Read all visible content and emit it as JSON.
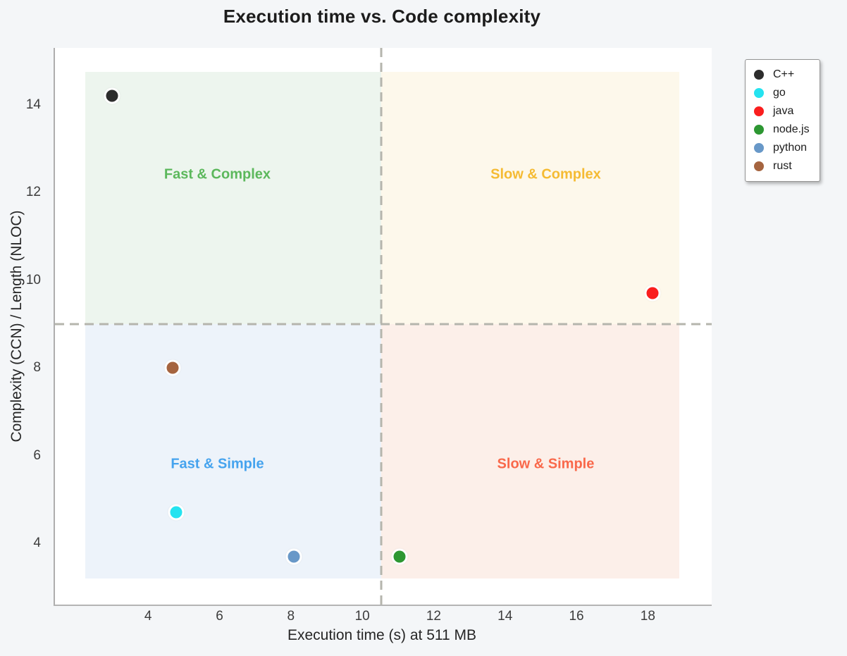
{
  "page": {
    "background": "#f4f6f8",
    "plot_background": "#ffffff",
    "spine_color": "#b0b0b0"
  },
  "chart_data": {
    "type": "scatter",
    "title": "Execution time vs. Code complexity",
    "xlabel": "Execution time (s) at 511 MB",
    "ylabel": "Complexity (CCN) / Length (NLOC)",
    "xlim": [
      1.35,
      19.75
    ],
    "ylim": [
      2.6,
      15.3
    ],
    "xticks": [
      4,
      6,
      8,
      10,
      12,
      14,
      16,
      18
    ],
    "yticks": [
      4,
      6,
      8,
      10,
      12,
      14
    ],
    "grid": false,
    "legend_position": "outside-top-right",
    "series": [
      {
        "name": "C++",
        "color": "#2d2d2d",
        "points": [
          [
            2.95,
            14.2
          ]
        ]
      },
      {
        "name": "go",
        "color": "#25e3f0",
        "points": [
          [
            4.75,
            4.7
          ]
        ]
      },
      {
        "name": "java",
        "color": "#fa1e1e",
        "points": [
          [
            18.1,
            9.7
          ]
        ]
      },
      {
        "name": "node.js",
        "color": "#2d9732",
        "points": [
          [
            11.0,
            3.7
          ]
        ]
      },
      {
        "name": "python",
        "color": "#6898c8",
        "points": [
          [
            8.05,
            3.7
          ]
        ]
      },
      {
        "name": "rust",
        "color": "#a5643f",
        "points": [
          [
            4.65,
            8.0
          ]
        ]
      }
    ],
    "quadrants": {
      "divider_x": 10.5,
      "divider_y": 9.0,
      "divider_color": "#b5b5ad",
      "shade_bounds": {
        "x0": 2.2,
        "x1": 18.85,
        "y0": 3.2,
        "y1": 14.75
      },
      "regions": [
        {
          "id": "fast-complex",
          "label": "Fast & Complex",
          "text_color": "#5cb85c",
          "fill": "#edf5ee",
          "label_x": 5.9,
          "label_y": 12.4
        },
        {
          "id": "slow-complex",
          "label": "Slow & Complex",
          "text_color": "#f5bb33",
          "fill": "#fdf8eb",
          "label_x": 15.1,
          "label_y": 12.4
        },
        {
          "id": "fast-simple",
          "label": "Fast & Simple",
          "text_color": "#45a3ee",
          "fill": "#edf3fa",
          "label_x": 5.9,
          "label_y": 5.8
        },
        {
          "id": "slow-simple",
          "label": "Slow & Simple",
          "text_color": "#f9684a",
          "fill": "#fcefe9",
          "label_x": 15.1,
          "label_y": 5.8
        }
      ]
    }
  }
}
